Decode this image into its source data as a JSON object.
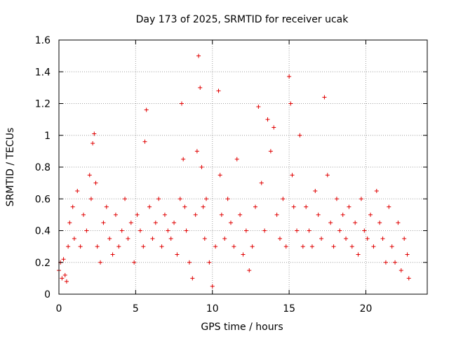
{
  "chart_data": {
    "type": "scatter",
    "title": "Day 173 of 2025, SRMTID for receiver ucak",
    "xlabel": "GPS time / hours",
    "ylabel": "SRMTID / TECUs",
    "xlim": [
      0,
      24
    ],
    "ylim": [
      0,
      1.6
    ],
    "xticks": [
      0,
      5,
      10,
      15,
      20
    ],
    "yticks": [
      0,
      0.2,
      0.4,
      0.6,
      0.8,
      1,
      1.2,
      1.4,
      1.6
    ],
    "ytick_labels": [
      "0",
      "0.2",
      "0.4",
      "0.6",
      "0.8",
      "1",
      "1.2",
      "1.4",
      "1.6"
    ],
    "grid": true,
    "marker": "+",
    "color": "#e00000",
    "series": [
      {
        "name": "SRMTID",
        "x": [
          0.0,
          0.1,
          0.2,
          0.3,
          0.4,
          0.5,
          0.6,
          0.7,
          0.9,
          1.0,
          1.2,
          1.4,
          1.6,
          1.8,
          2.0,
          2.1,
          2.2,
          2.3,
          2.4,
          2.5,
          2.7,
          2.9,
          3.1,
          3.3,
          3.5,
          3.7,
          3.9,
          4.1,
          4.3,
          4.5,
          4.7,
          4.9,
          5.1,
          5.3,
          5.5,
          5.6,
          5.7,
          5.9,
          6.1,
          6.3,
          6.5,
          6.7,
          6.9,
          7.1,
          7.3,
          7.5,
          7.7,
          7.9,
          8.0,
          8.1,
          8.2,
          8.3,
          8.5,
          8.7,
          8.9,
          9.0,
          9.1,
          9.2,
          9.3,
          9.4,
          9.5,
          9.6,
          9.8,
          10.0,
          10.2,
          10.4,
          10.5,
          10.6,
          10.8,
          11.0,
          11.2,
          11.4,
          11.6,
          11.8,
          12.0,
          12.2,
          12.4,
          12.6,
          12.8,
          13.0,
          13.2,
          13.4,
          13.6,
          13.8,
          14.0,
          14.2,
          14.4,
          14.6,
          14.8,
          15.0,
          15.1,
          15.2,
          15.3,
          15.5,
          15.7,
          15.9,
          16.1,
          16.3,
          16.5,
          16.7,
          16.9,
          17.1,
          17.3,
          17.5,
          17.7,
          17.9,
          18.1,
          18.3,
          18.5,
          18.7,
          18.9,
          19.1,
          19.3,
          19.5,
          19.7,
          19.9,
          20.1,
          20.3,
          20.5,
          20.7,
          20.9,
          21.1,
          21.3,
          21.5,
          21.7,
          21.9,
          22.1,
          22.3,
          22.5,
          22.7,
          22.8
        ],
        "y": [
          0.15,
          0.2,
          0.1,
          0.22,
          0.12,
          0.08,
          0.3,
          0.45,
          0.55,
          0.35,
          0.65,
          0.3,
          0.5,
          0.4,
          0.75,
          0.6,
          0.95,
          1.01,
          0.7,
          0.3,
          0.2,
          0.45,
          0.55,
          0.35,
          0.25,
          0.5,
          0.3,
          0.4,
          0.6,
          0.35,
          0.45,
          0.2,
          0.5,
          0.4,
          0.3,
          0.96,
          1.16,
          0.55,
          0.35,
          0.45,
          0.6,
          0.3,
          0.5,
          0.4,
          0.35,
          0.45,
          0.25,
          0.6,
          1.2,
          0.85,
          0.55,
          0.4,
          0.2,
          0.1,
          0.5,
          0.9,
          1.5,
          1.3,
          0.8,
          0.55,
          0.35,
          0.6,
          0.2,
          0.05,
          0.3,
          1.28,
          0.75,
          0.5,
          0.35,
          0.6,
          0.45,
          0.3,
          0.85,
          0.5,
          0.25,
          0.4,
          0.15,
          0.3,
          0.55,
          1.18,
          0.7,
          0.4,
          1.1,
          0.9,
          1.05,
          0.5,
          0.35,
          0.6,
          0.3,
          1.37,
          1.2,
          0.75,
          0.55,
          0.4,
          1.0,
          0.3,
          0.55,
          0.4,
          0.3,
          0.65,
          0.5,
          0.35,
          1.24,
          0.75,
          0.45,
          0.3,
          0.6,
          0.4,
          0.5,
          0.35,
          0.55,
          0.3,
          0.45,
          0.25,
          0.6,
          0.4,
          0.35,
          0.5,
          0.3,
          0.65,
          0.45,
          0.35,
          0.2,
          0.55,
          0.3,
          0.2,
          0.45,
          0.15,
          0.35,
          0.25,
          0.1
        ]
      }
    ]
  }
}
